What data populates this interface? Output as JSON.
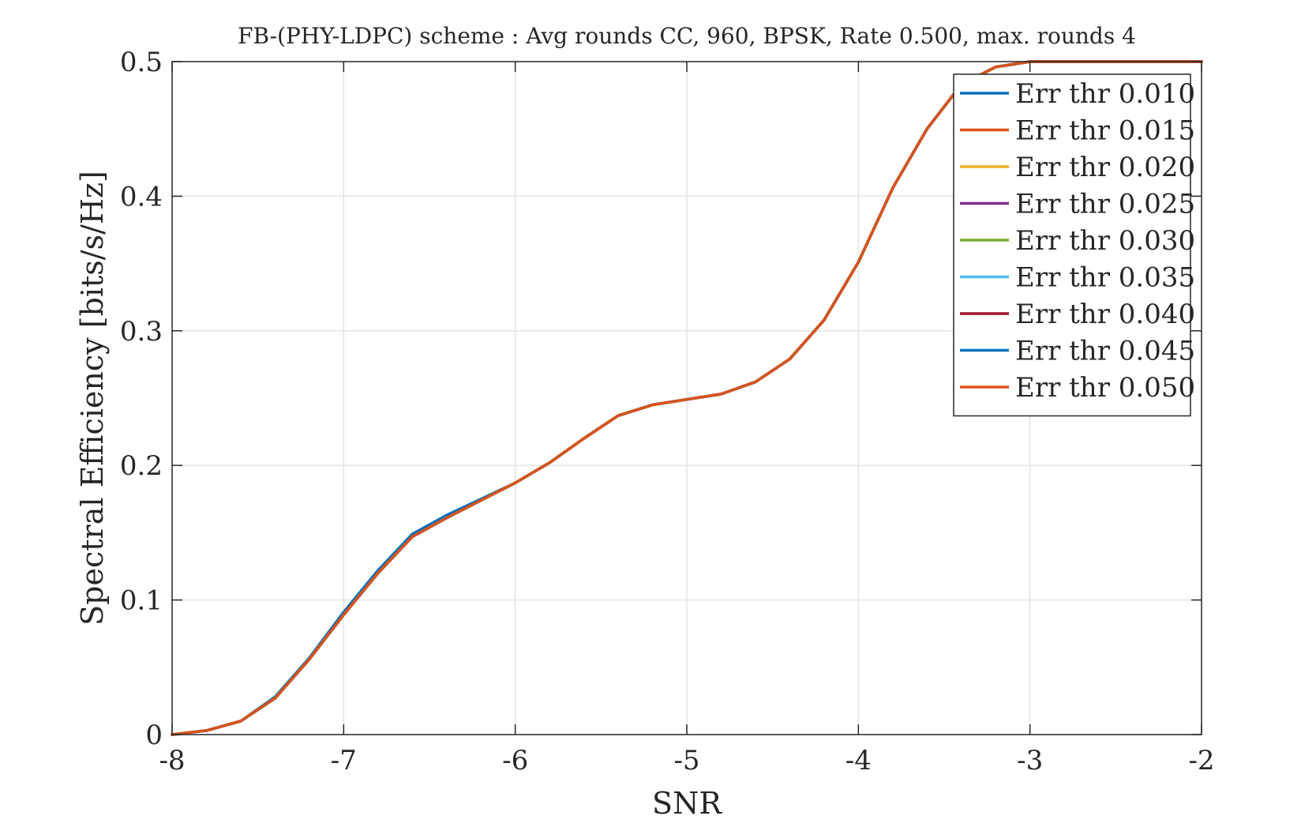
{
  "chart_data": {
    "type": "line",
    "title": "FB-(PHY-LDPC) scheme : Avg rounds CC, 960, BPSK, Rate 0.500, max. rounds 4",
    "xlabel": "SNR",
    "ylabel": "Spectral Efficiency [bits/s/Hz]",
    "xlim": [
      -8,
      -2
    ],
    "ylim": [
      0,
      0.5
    ],
    "xticks": [
      -8,
      -7,
      -6,
      -5,
      -4,
      -3,
      -2
    ],
    "xtick_labels": [
      "-8",
      "-7",
      "-6",
      "-5",
      "-4",
      "-3",
      "-2"
    ],
    "yticks": [
      0,
      0.1,
      0.2,
      0.3,
      0.4,
      0.5
    ],
    "ytick_labels": [
      "0",
      "0.1",
      "0.2",
      "0.3",
      "0.4",
      "0.5"
    ],
    "grid": true,
    "legend_position": "top-right",
    "x": [
      -8.0,
      -7.8,
      -7.6,
      -7.4,
      -7.2,
      -7.0,
      -6.8,
      -6.6,
      -6.4,
      -6.2,
      -6.0,
      -5.8,
      -5.6,
      -5.4,
      -5.2,
      -5.0,
      -4.8,
      -4.6,
      -4.4,
      -4.2,
      -4.0,
      -3.8,
      -3.6,
      -3.4,
      -3.2,
      -3.0,
      -2.8,
      -2.6,
      -2.4,
      -2.2,
      -2.0
    ],
    "series": [
      {
        "name": "Err thr 0.010",
        "color": "#0072BD",
        "values": [
          0.0,
          0.003,
          0.01,
          0.028,
          0.057,
          0.091,
          0.122,
          0.149,
          0.163,
          0.175,
          0.187,
          0.202,
          0.22,
          0.237,
          0.245,
          0.249,
          0.253,
          0.262,
          0.279,
          0.308,
          0.351,
          0.406,
          0.45,
          0.483,
          0.496,
          0.5,
          0.5,
          0.5,
          0.5,
          0.5,
          0.5
        ]
      },
      {
        "name": "Err thr 0.015",
        "color": "#D95319",
        "values": [
          0.0,
          0.003,
          0.01,
          0.027,
          0.056,
          0.089,
          0.12,
          0.147,
          0.161,
          0.174,
          0.187,
          0.202,
          0.22,
          0.237,
          0.245,
          0.249,
          0.253,
          0.262,
          0.279,
          0.308,
          0.351,
          0.406,
          0.45,
          0.483,
          0.496,
          0.5,
          0.5,
          0.5,
          0.5,
          0.5,
          0.5
        ]
      },
      {
        "name": "Err thr 0.020",
        "color": "#EDB120",
        "values": [
          0.0,
          0.003,
          0.01,
          0.027,
          0.056,
          0.089,
          0.12,
          0.147,
          0.161,
          0.174,
          0.187,
          0.202,
          0.22,
          0.237,
          0.245,
          0.249,
          0.253,
          0.262,
          0.279,
          0.308,
          0.351,
          0.406,
          0.45,
          0.483,
          0.496,
          0.5,
          0.5,
          0.5,
          0.5,
          0.5,
          0.5
        ]
      },
      {
        "name": "Err thr 0.025",
        "color": "#7E2F8E",
        "values": [
          0.0,
          0.003,
          0.01,
          0.027,
          0.056,
          0.089,
          0.12,
          0.147,
          0.161,
          0.174,
          0.187,
          0.202,
          0.22,
          0.237,
          0.245,
          0.249,
          0.253,
          0.262,
          0.279,
          0.308,
          0.351,
          0.406,
          0.45,
          0.483,
          0.496,
          0.5,
          0.5,
          0.5,
          0.5,
          0.5,
          0.5
        ]
      },
      {
        "name": "Err thr 0.030",
        "color": "#77AC30",
        "values": [
          0.0,
          0.003,
          0.01,
          0.027,
          0.056,
          0.089,
          0.12,
          0.147,
          0.161,
          0.174,
          0.187,
          0.202,
          0.22,
          0.237,
          0.245,
          0.249,
          0.253,
          0.262,
          0.279,
          0.308,
          0.351,
          0.406,
          0.45,
          0.483,
          0.496,
          0.5,
          0.5,
          0.5,
          0.5,
          0.5,
          0.5
        ]
      },
      {
        "name": "Err thr 0.035",
        "color": "#4DBEEE",
        "values": [
          0.0,
          0.003,
          0.01,
          0.027,
          0.056,
          0.089,
          0.12,
          0.147,
          0.161,
          0.174,
          0.187,
          0.202,
          0.22,
          0.237,
          0.245,
          0.249,
          0.253,
          0.262,
          0.279,
          0.308,
          0.351,
          0.406,
          0.45,
          0.483,
          0.496,
          0.5,
          0.5,
          0.5,
          0.5,
          0.5,
          0.5
        ]
      },
      {
        "name": "Err thr 0.040",
        "color": "#A2142F",
        "values": [
          0.0,
          0.003,
          0.01,
          0.027,
          0.056,
          0.089,
          0.12,
          0.147,
          0.161,
          0.174,
          0.187,
          0.202,
          0.22,
          0.237,
          0.245,
          0.249,
          0.253,
          0.262,
          0.279,
          0.308,
          0.351,
          0.406,
          0.45,
          0.483,
          0.496,
          0.5,
          0.5,
          0.5,
          0.5,
          0.5,
          0.5
        ]
      },
      {
        "name": "Err thr 0.045",
        "color": "#0072BD",
        "values": [
          0.0,
          0.003,
          0.01,
          0.027,
          0.056,
          0.089,
          0.12,
          0.147,
          0.161,
          0.174,
          0.187,
          0.202,
          0.22,
          0.237,
          0.245,
          0.249,
          0.253,
          0.262,
          0.279,
          0.308,
          0.351,
          0.406,
          0.45,
          0.483,
          0.496,
          0.5,
          0.5,
          0.5,
          0.5,
          0.5,
          0.5
        ]
      },
      {
        "name": "Err thr 0.050",
        "color": "#D95319",
        "values": [
          0.0,
          0.003,
          0.01,
          0.027,
          0.056,
          0.089,
          0.12,
          0.147,
          0.161,
          0.174,
          0.187,
          0.202,
          0.22,
          0.237,
          0.245,
          0.249,
          0.253,
          0.262,
          0.279,
          0.308,
          0.351,
          0.406,
          0.45,
          0.483,
          0.496,
          0.5,
          0.5,
          0.5,
          0.5,
          0.5,
          0.5
        ]
      }
    ]
  }
}
